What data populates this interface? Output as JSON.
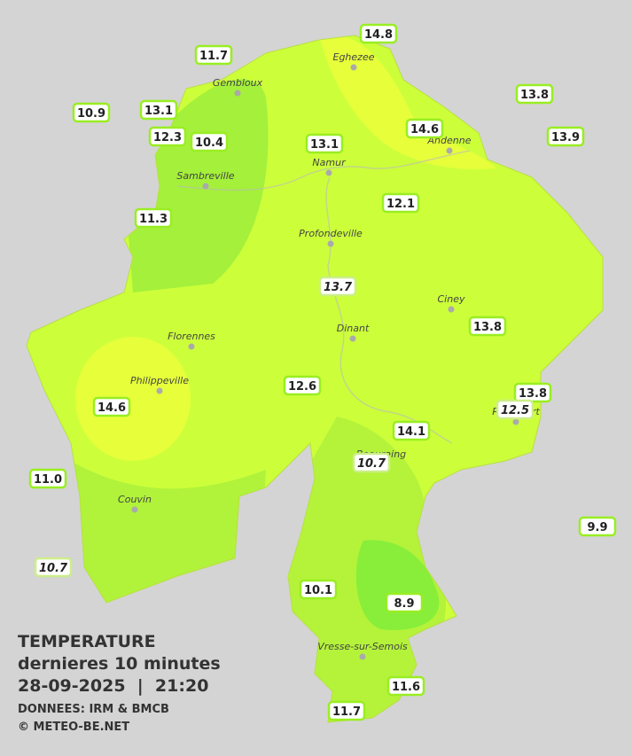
{
  "caption": {
    "title": "TEMPERATURE",
    "subtitle": "dernieres 10 minutes",
    "datetime": "28-09-2025  |  21:20",
    "source": "DONNEES: IRM & BMCB",
    "copyright": "© METEO-BE.NET"
  },
  "cities": [
    "Eghezee",
    "Gembloux",
    "Andenne",
    "Namur",
    "Sambreville",
    "Profondeville",
    "Ciney",
    "Florennes",
    "Dinant",
    "Philippeville",
    "Beauraing",
    "Rochefort",
    "Couvin",
    "Vresse-sur-Semois"
  ],
  "stations": [
    {
      "label": "14.8",
      "italic": false
    },
    {
      "label": "11.7",
      "italic": false
    },
    {
      "label": "13.8",
      "italic": false
    },
    {
      "label": "10.9",
      "italic": false
    },
    {
      "label": "13.1",
      "italic": false
    },
    {
      "label": "12.3",
      "italic": false
    },
    {
      "label": "10.4",
      "italic": false
    },
    {
      "label": "13.1",
      "italic": false
    },
    {
      "label": "14.6",
      "italic": false
    },
    {
      "label": "13.9",
      "italic": false
    },
    {
      "label": "12.1",
      "italic": false
    },
    {
      "label": "11.3",
      "italic": false
    },
    {
      "label": "13.7",
      "italic": true
    },
    {
      "label": "13.8",
      "italic": false
    },
    {
      "label": "12.6",
      "italic": false
    },
    {
      "label": "13.8",
      "italic": false
    },
    {
      "label": "12.5",
      "italic": true
    },
    {
      "label": "14.6",
      "italic": false
    },
    {
      "label": "14.1",
      "italic": false
    },
    {
      "label": "10.7",
      "italic": true
    },
    {
      "label": "11.0",
      "italic": false
    },
    {
      "label": "9.9",
      "italic": false
    },
    {
      "label": "10.7",
      "italic": true
    },
    {
      "label": "10.1",
      "italic": false
    },
    {
      "label": "8.9",
      "italic": false
    },
    {
      "label": "11.6",
      "italic": false
    },
    {
      "label": "11.7",
      "italic": false
    }
  ]
}
